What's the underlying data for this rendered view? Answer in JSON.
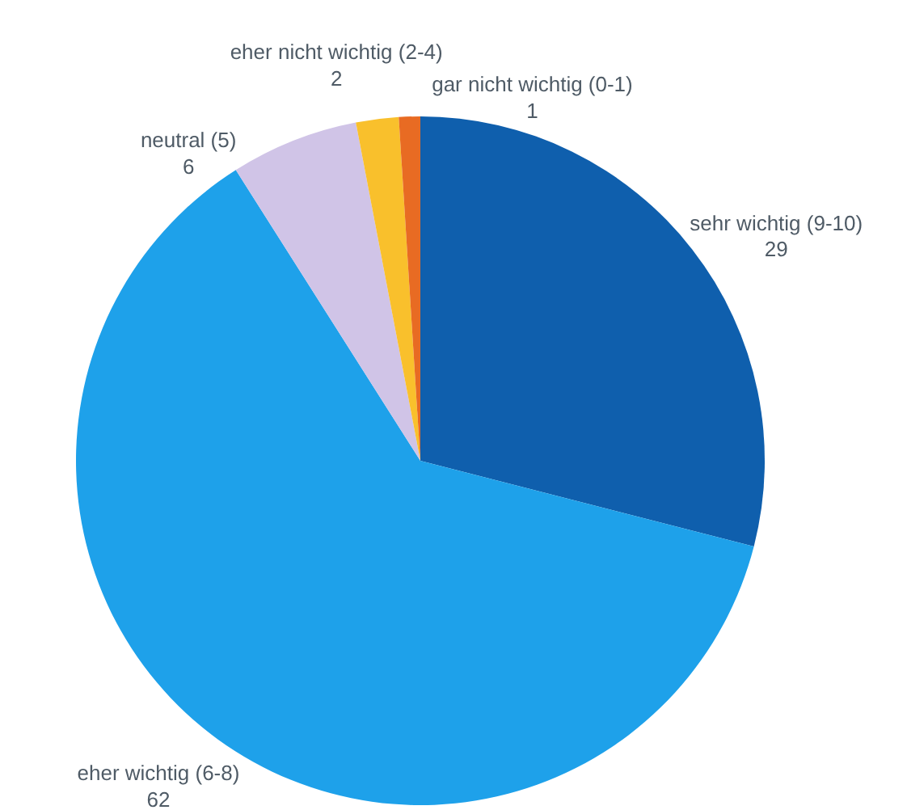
{
  "chart_data": {
    "type": "pie",
    "categories": [
      "sehr wichtig (9-10)",
      "eher wichtig (6-8)",
      "neutral (5)",
      "eher nicht wichtig (2-4)",
      "gar nicht wichtig (0-1)"
    ],
    "values": [
      29,
      62,
      6,
      2,
      1
    ],
    "colors": [
      "#0f5fad",
      "#1ea1ea",
      "#d0c4e7",
      "#f9c02c",
      "#e86b23"
    ],
    "data_labels": true
  }
}
